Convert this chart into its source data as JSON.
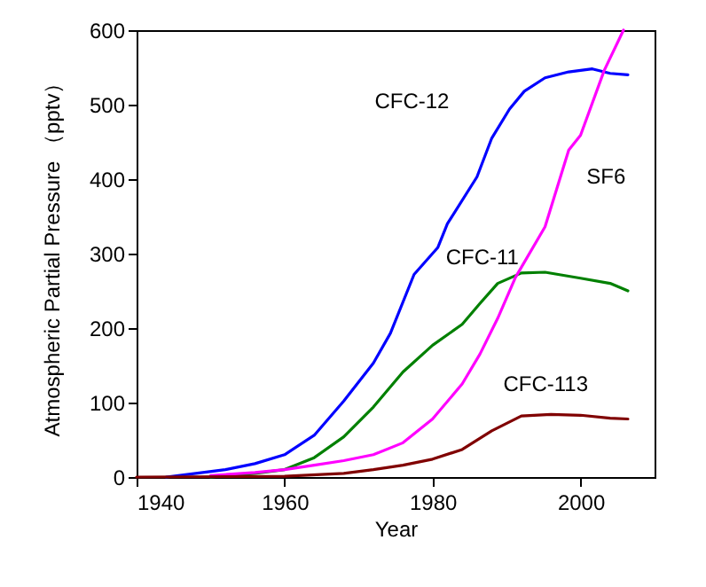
{
  "chart_data": {
    "type": "line",
    "xlabel": "Year",
    "ylabel": "Atmospheric Partial Pressure （pptv）",
    "xlim": [
      1940,
      2010
    ],
    "xticks": [
      1940,
      1960,
      1980,
      2000
    ],
    "ylim": [
      0,
      600
    ],
    "yticks": [
      0,
      100,
      200,
      300,
      400,
      500,
      600
    ],
    "series": [
      {
        "name": "CFC-12",
        "color": "#0000ff",
        "x": [
          1944,
          1948,
          1952,
          1956,
          1960,
          1964,
          1968,
          1972,
          1974.3,
          1977.5,
          1980.7,
          1982,
          1986,
          1988,
          1990.4,
          1992.4,
          1995.2,
          1998.4,
          2001.6,
          2004,
          2006.4
        ],
        "values": [
          0,
          5,
          10,
          18,
          30,
          56,
          102,
          153,
          193,
          272,
          308,
          340,
          403,
          455,
          494,
          518,
          536,
          544,
          548,
          542,
          540
        ]
      },
      {
        "name": "CFC-11",
        "color": "#008000",
        "x": [
          1950,
          1956,
          1960,
          1964,
          1968,
          1972,
          1976,
          1980,
          1984,
          1986.4,
          1988.8,
          1992,
          1995.2,
          2000,
          2004,
          2006.4
        ],
        "values": [
          0,
          5,
          10,
          26,
          54,
          94,
          141,
          177,
          205,
          233,
          260,
          274,
          275,
          267,
          260,
          250
        ]
      },
      {
        "name": "SF6",
        "color": "#ff00ff",
        "x": [
          1950,
          1956,
          1960,
          1964,
          1968,
          1972,
          1976,
          1980,
          1984,
          1986.4,
          1988.8,
          1991.2,
          1995.2,
          1998.4,
          2000,
          2003.2,
          2005.8
        ],
        "values": [
          2,
          6,
          10,
          16,
          22,
          30,
          46,
          78,
          125,
          165,
          213,
          268,
          336,
          439,
          459,
          546,
          600
        ]
      },
      {
        "name": "CFC-113",
        "color": "#800000",
        "x": [
          1940,
          1960,
          1968,
          1972,
          1976,
          1980,
          1984,
          1988,
          1992,
          1996,
          2000,
          2004,
          2006.4
        ],
        "values": [
          0,
          1,
          5,
          10,
          16,
          24,
          37,
          62,
          82,
          84,
          83,
          79,
          78
        ]
      }
    ]
  }
}
